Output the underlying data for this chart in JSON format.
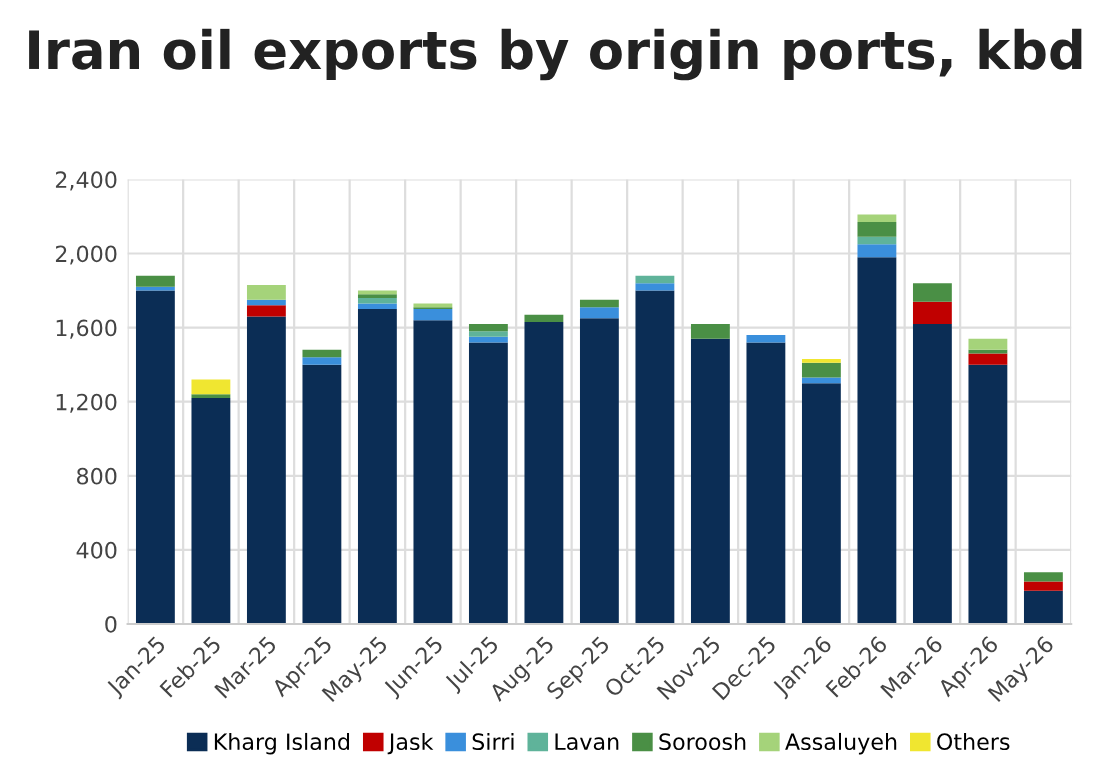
{
  "chart_data": {
    "type": "bar",
    "title": "Iran oil exports by origin ports, kbd",
    "stacked": true,
    "categories": [
      "Jan-25",
      "Feb-25",
      "Mar-25",
      "Apr-25",
      "May-25",
      "Jun-25",
      "Jul-25",
      "Aug-25",
      "Sep-25",
      "Oct-25",
      "Nov-25",
      "Dec-25",
      "Jan-26",
      "Feb-26",
      "Mar-26",
      "Apr-26",
      "May-26"
    ],
    "series": [
      {
        "name": "Kharg Island",
        "color": "#0b2d55",
        "values": [
          1800,
          1220,
          1660,
          1400,
          1700,
          1640,
          1520,
          1630,
          1650,
          1800,
          1540,
          1520,
          1300,
          1980,
          1620,
          1400,
          180
        ]
      },
      {
        "name": "Jask",
        "color": "#c00000",
        "values": [
          null,
          null,
          60,
          null,
          null,
          null,
          null,
          null,
          null,
          null,
          null,
          null,
          null,
          null,
          120,
          60,
          50
        ]
      },
      {
        "name": "Sirri",
        "color": "#3a8fdc",
        "values": [
          20,
          null,
          30,
          40,
          30,
          60,
          30,
          null,
          60,
          40,
          null,
          40,
          30,
          70,
          null,
          null,
          null
        ]
      },
      {
        "name": "Lavan",
        "color": "#5fb39a",
        "values": [
          null,
          null,
          null,
          null,
          30,
          null,
          30,
          null,
          null,
          40,
          null,
          null,
          null,
          40,
          null,
          null,
          null
        ]
      },
      {
        "name": "Soroosh",
        "color": "#4a8f45",
        "values": [
          60,
          20,
          null,
          40,
          20,
          10,
          40,
          40,
          40,
          null,
          80,
          null,
          80,
          80,
          100,
          20,
          50
        ]
      },
      {
        "name": "Assaluyeh",
        "color": "#a5d37a",
        "values": [
          null,
          null,
          80,
          null,
          20,
          20,
          null,
          null,
          null,
          null,
          null,
          null,
          null,
          40,
          null,
          60,
          null
        ]
      },
      {
        "name": "Others",
        "color": "#f0e630",
        "values": [
          null,
          80,
          null,
          null,
          null,
          null,
          null,
          null,
          null,
          null,
          null,
          null,
          20,
          null,
          null,
          null,
          null
        ]
      }
    ],
    "ylim": [
      0,
      2400
    ],
    "yticks": [
      0,
      {
        "value": 400,
        "label": "400"
      },
      {
        "value": 800,
        "label": "800"
      },
      {
        "value": 1200,
        "label": "1,200"
      },
      {
        "value": 1600,
        "label": "1,600"
      },
      {
        "value": 2000,
        "label": "2,000"
      },
      {
        "value": 2400,
        "label": "2,400"
      }
    ],
    "grid": true,
    "legend": "bottom"
  }
}
